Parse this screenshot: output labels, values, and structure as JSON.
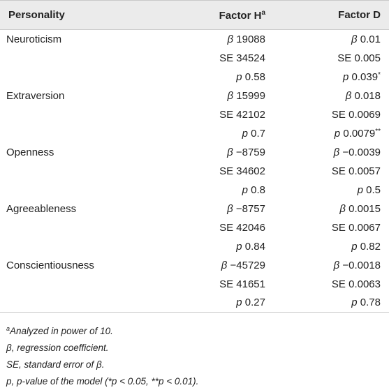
{
  "header": {
    "col1": "Personality",
    "col2": "Factor H",
    "col2_sup": "a",
    "col3": "Factor D"
  },
  "rows": [
    {
      "trait": "Neuroticism",
      "h": {
        "sym": "β",
        "val": "19088"
      },
      "d": {
        "sym": "β",
        "val": "0.01"
      }
    },
    {
      "trait": "",
      "h": {
        "sym": "SE",
        "val": "34524"
      },
      "d": {
        "sym": "SE",
        "val": "0.005"
      }
    },
    {
      "trait": "",
      "h": {
        "sym": "p",
        "val": "0.58"
      },
      "d": {
        "sym": "p",
        "val": "0.039",
        "sig": "*"
      }
    },
    {
      "trait": "Extraversion",
      "h": {
        "sym": "β",
        "val": "15999"
      },
      "d": {
        "sym": "β",
        "val": "0.018"
      }
    },
    {
      "trait": "",
      "h": {
        "sym": "SE",
        "val": "42102"
      },
      "d": {
        "sym": "SE",
        "val": "0.0069"
      }
    },
    {
      "trait": "",
      "h": {
        "sym": "p",
        "val": "0.7"
      },
      "d": {
        "sym": "p",
        "val": "0.0079",
        "sig": "**"
      }
    },
    {
      "trait": "Openness",
      "h": {
        "sym": "β",
        "val": "−8759"
      },
      "d": {
        "sym": "β",
        "val": "−0.0039"
      }
    },
    {
      "trait": "",
      "h": {
        "sym": "SE",
        "val": "34602"
      },
      "d": {
        "sym": "SE",
        "val": "0.0057"
      }
    },
    {
      "trait": "",
      "h": {
        "sym": "p",
        "val": "0.8"
      },
      "d": {
        "sym": "p",
        "val": "0.5"
      }
    },
    {
      "trait": "Agreeableness",
      "h": {
        "sym": "β",
        "val": "−8757"
      },
      "d": {
        "sym": "β",
        "val": "0.0015"
      }
    },
    {
      "trait": "",
      "h": {
        "sym": "SE",
        "val": "42046"
      },
      "d": {
        "sym": "SE",
        "val": "0.0067"
      }
    },
    {
      "trait": "",
      "h": {
        "sym": "p",
        "val": "0.84"
      },
      "d": {
        "sym": "p",
        "val": "0.82"
      }
    },
    {
      "trait": "Conscientiousness",
      "h": {
        "sym": "β",
        "val": "−45729"
      },
      "d": {
        "sym": "β",
        "val": "−0.0018"
      }
    },
    {
      "trait": "",
      "h": {
        "sym": "SE",
        "val": "41651"
      },
      "d": {
        "sym": "SE",
        "val": "0.0063"
      }
    },
    {
      "trait": "",
      "h": {
        "sym": "p",
        "val": "0.27"
      },
      "d": {
        "sym": "p",
        "val": "0.78"
      }
    }
  ],
  "notes": {
    "a_sup": "a",
    "a_text": "Analyzed in power of 10.",
    "beta": "β, regression coefficient.",
    "se": "SE, standard error of β.",
    "p": "p, p-value of the model (*p < 0.05, **p < 0.01)."
  }
}
